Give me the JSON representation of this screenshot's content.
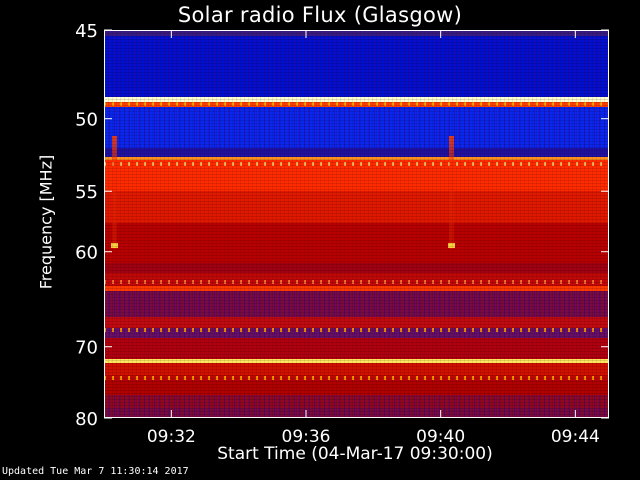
{
  "chart_data": {
    "type": "heatmap",
    "title": "Solar radio Flux (Glasgow)",
    "xlabel": "Start Time (04-Mar-17 09:30:00)",
    "ylabel": "Frequency [MHz]",
    "x_start_label": "09:30:00",
    "x_ticks": [
      "09:32",
      "09:36",
      "09:40",
      "09:44"
    ],
    "x_tick_minutes": [
      2,
      6,
      10,
      14
    ],
    "xlim_minutes": [
      0,
      15
    ],
    "y_ticks": [
      45,
      50,
      55,
      60,
      70,
      80
    ],
    "ylim_mhz": [
      45,
      80
    ],
    "y_scale": "reciprocal",
    "grid": false,
    "bands": [
      {
        "from": 45.0,
        "to": 45.3,
        "color": "#3a1a80"
      },
      {
        "from": 45.3,
        "to": 48.7,
        "color": "#0010d0"
      },
      {
        "from": 48.7,
        "to": 49.0,
        "color": "#ffffd0"
      },
      {
        "from": 49.0,
        "to": 49.25,
        "color": "#ff4000"
      },
      {
        "from": 49.25,
        "to": 51.9,
        "color": "#0828f0"
      },
      {
        "from": 51.9,
        "to": 52.5,
        "color": "#2010a0"
      },
      {
        "from": 52.5,
        "to": 52.75,
        "color": "#ff9020"
      },
      {
        "from": 52.75,
        "to": 55.0,
        "color": "#ff2a00"
      },
      {
        "from": 55.0,
        "to": 57.5,
        "color": "#e01800"
      },
      {
        "from": 57.5,
        "to": 61.0,
        "color": "#b80000"
      },
      {
        "from": 61.0,
        "to": 62.0,
        "color": "#a00010"
      },
      {
        "from": 62.0,
        "to": 63.3,
        "color": "#c00808"
      },
      {
        "from": 63.3,
        "to": 63.8,
        "color": "#ff3a00"
      },
      {
        "from": 63.8,
        "to": 66.5,
        "color": "#7a0a40"
      },
      {
        "from": 66.5,
        "to": 67.8,
        "color": "#c00a10"
      },
      {
        "from": 67.8,
        "to": 69.0,
        "color": "#6a1060"
      },
      {
        "from": 69.0,
        "to": 71.5,
        "color": "#b00010"
      },
      {
        "from": 71.5,
        "to": 72.0,
        "color": "#ffe860"
      },
      {
        "from": 72.0,
        "to": 73.6,
        "color": "#d01000"
      },
      {
        "from": 73.6,
        "to": 74.4,
        "color": "#c00800"
      },
      {
        "from": 74.4,
        "to": 76.5,
        "color": "#b00000"
      },
      {
        "from": 76.5,
        "to": 78.5,
        "color": "#900820"
      },
      {
        "from": 78.5,
        "to": 80.0,
        "color": "#7a0a3a"
      }
    ],
    "periodic_lines": [
      {
        "mhz": 49.1,
        "color": "rgba(255,170,0,0.9)"
      },
      {
        "mhz": 53.0,
        "color": "rgba(255,220,120,0.8)"
      },
      {
        "mhz": 62.9,
        "color": "rgba(255,120,60,0.9)"
      },
      {
        "mhz": 68.0,
        "color": "rgba(255,150,0,0.95)"
      },
      {
        "mhz": 74.0,
        "color": "rgba(255,160,0,0.95)"
      }
    ],
    "bursts": [
      {
        "minute": 0.3,
        "from_mhz": 51.1,
        "to_mhz": 59.8,
        "peak_mhz": 59.4
      },
      {
        "minute": 10.3,
        "from_mhz": 51.1,
        "to_mhz": 59.8,
        "peak_mhz": 59.4
      }
    ],
    "colors": {
      "low": "#0010d0",
      "mid": "#c00000",
      "high": "#ffe860"
    }
  },
  "footer": {
    "updated": "Updated Tue Mar  7 11:30:14 2017"
  }
}
